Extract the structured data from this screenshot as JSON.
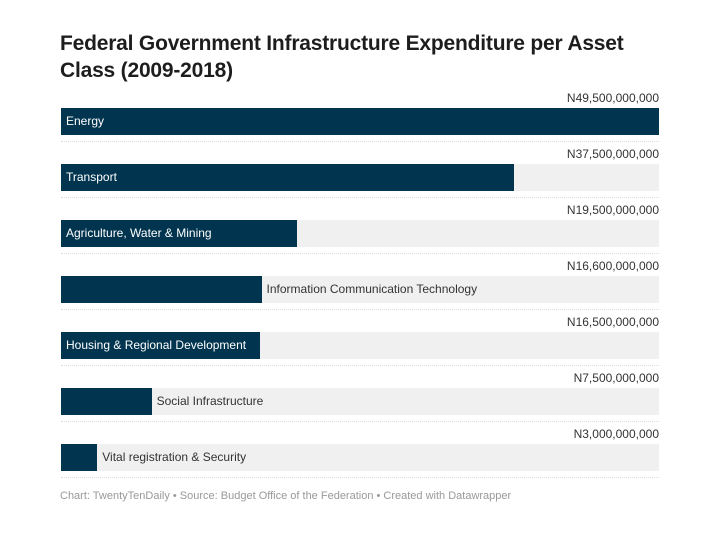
{
  "chart_data": {
    "type": "bar",
    "orientation": "horizontal",
    "title": "Federal Government Infrastructure Expenditure per Asset Class (2009-2018)",
    "categories": [
      "Energy",
      "Transport",
      "Agriculture, Water & Mining",
      "Information Communication Technology",
      "Housing & Regional Development",
      "Social Infrastructure",
      "Vital registration & Security"
    ],
    "values": [
      49500000000,
      37500000000,
      19500000000,
      16600000000,
      16500000000,
      7500000000,
      3000000000
    ],
    "value_labels": [
      "N49,500,000,000",
      "N37,500,000,000",
      "N19,500,000,000",
      "N16,600,000,000",
      "N16,500,000,000",
      "N7,500,000,000",
      "N3,000,000,000"
    ],
    "xlim": [
      0,
      49500000000
    ],
    "bar_color": "#01344f",
    "track_color": "#f0f0f0"
  },
  "footer": "Chart: TwentyTenDaily • Source: Budget Office of the Federation • Created with Datawrapper"
}
